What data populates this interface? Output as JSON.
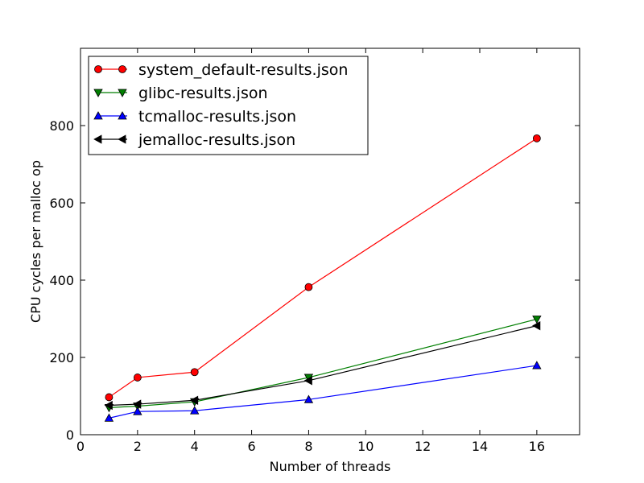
{
  "chart_data": {
    "type": "line",
    "title": "",
    "xlabel": "Number of threads",
    "ylabel": "CPU cycles per malloc op",
    "xlim": [
      0,
      17.5
    ],
    "ylim": [
      0,
      1000
    ],
    "xticks": [
      0,
      2,
      4,
      6,
      8,
      10,
      12,
      14,
      16
    ],
    "yticks": [
      0,
      200,
      400,
      600,
      800
    ],
    "grid": false,
    "legend_position": "top-left",
    "x": [
      1,
      2,
      4,
      8,
      16
    ],
    "series": [
      {
        "name": "system_default-results.json",
        "color": "#ff0000",
        "marker": "circle",
        "values": [
          97,
          148,
          162,
          382,
          767
        ]
      },
      {
        "name": "glibc-results.json",
        "color": "#007f00",
        "marker": "triangle-down",
        "values": [
          70,
          74,
          85,
          148,
          299
        ]
      },
      {
        "name": "tcmalloc-results.json",
        "color": "#0000ff",
        "marker": "triangle-up",
        "values": [
          43,
          60,
          62,
          91,
          179
        ]
      },
      {
        "name": "jemalloc-results.json",
        "color": "#000000",
        "marker": "triangle-left",
        "values": [
          76,
          79,
          89,
          140,
          282
        ]
      }
    ]
  }
}
